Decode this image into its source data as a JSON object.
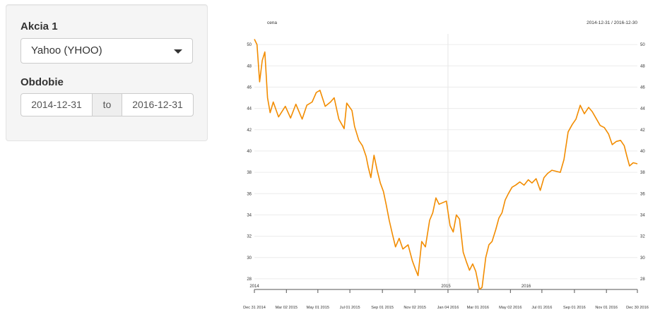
{
  "sidebar": {
    "stock_label": "Akcia 1",
    "stock_value": "Yahoo (YHOO)",
    "period_label": "Obdobie",
    "date_from": "2014-12-31",
    "date_sep": "to",
    "date_to": "2016-12-31"
  },
  "chart_data": {
    "type": "line",
    "series": [
      {
        "name": "cena",
        "color": "#f28c00",
        "points": [
          [
            "2014-12-31",
            50.5
          ],
          [
            "2015-01-05",
            50.0
          ],
          [
            "2015-01-10",
            46.5
          ],
          [
            "2015-01-15",
            48.5
          ],
          [
            "2015-01-20",
            49.3
          ],
          [
            "2015-01-25",
            45.0
          ],
          [
            "2015-01-30",
            43.6
          ],
          [
            "2015-02-05",
            44.6
          ],
          [
            "2015-02-15",
            43.2
          ],
          [
            "2015-02-28",
            44.2
          ],
          [
            "2015-03-10",
            43.1
          ],
          [
            "2015-03-20",
            44.4
          ],
          [
            "2015-04-01",
            43.0
          ],
          [
            "2015-04-10",
            44.3
          ],
          [
            "2015-04-20",
            44.6
          ],
          [
            "2015-04-28",
            45.5
          ],
          [
            "2015-05-05",
            45.7
          ],
          [
            "2015-05-15",
            44.2
          ],
          [
            "2015-05-25",
            44.6
          ],
          [
            "2015-06-01",
            45.0
          ],
          [
            "2015-06-10",
            43.0
          ],
          [
            "2015-06-20",
            42.1
          ],
          [
            "2015-06-25",
            44.5
          ],
          [
            "2015-07-05",
            43.8
          ],
          [
            "2015-07-10",
            42.3
          ],
          [
            "2015-07-18",
            41.0
          ],
          [
            "2015-07-25",
            40.5
          ],
          [
            "2015-08-01",
            39.5
          ],
          [
            "2015-08-05",
            38.5
          ],
          [
            "2015-08-10",
            37.5
          ],
          [
            "2015-08-16",
            39.6
          ],
          [
            "2015-08-22",
            38.2
          ],
          [
            "2015-08-28",
            37.0
          ],
          [
            "2015-09-03",
            36.2
          ],
          [
            "2015-09-08",
            35.0
          ],
          [
            "2015-09-14",
            33.5
          ],
          [
            "2015-09-20",
            32.2
          ],
          [
            "2015-09-26",
            31.0
          ],
          [
            "2015-10-03",
            31.8
          ],
          [
            "2015-10-10",
            30.8
          ],
          [
            "2015-10-20",
            31.2
          ],
          [
            "2015-10-28",
            29.7
          ],
          [
            "2015-11-03",
            28.9
          ],
          [
            "2015-11-08",
            28.3
          ],
          [
            "2015-11-15",
            31.5
          ],
          [
            "2015-11-22",
            31.0
          ],
          [
            "2015-11-30",
            33.5
          ],
          [
            "2015-12-06",
            34.2
          ],
          [
            "2015-12-12",
            35.6
          ],
          [
            "2015-12-18",
            35.0
          ],
          [
            "2016-01-01",
            35.3
          ],
          [
            "2016-01-08",
            33.0
          ],
          [
            "2016-01-14",
            32.4
          ],
          [
            "2016-01-20",
            34.0
          ],
          [
            "2016-01-26",
            33.6
          ],
          [
            "2016-02-02",
            30.5
          ],
          [
            "2016-02-08",
            29.6
          ],
          [
            "2016-02-14",
            28.8
          ],
          [
            "2016-02-20",
            29.4
          ],
          [
            "2016-02-26",
            28.7
          ],
          [
            "2016-03-04",
            27.0
          ],
          [
            "2016-03-09",
            27.2
          ],
          [
            "2016-03-16",
            30.0
          ],
          [
            "2016-03-22",
            31.2
          ],
          [
            "2016-03-28",
            31.5
          ],
          [
            "2016-04-04",
            32.6
          ],
          [
            "2016-04-10",
            33.7
          ],
          [
            "2016-04-16",
            34.2
          ],
          [
            "2016-04-22",
            35.4
          ],
          [
            "2016-04-28",
            36.0
          ],
          [
            "2016-05-05",
            36.6
          ],
          [
            "2016-05-12",
            36.8
          ],
          [
            "2016-05-20",
            37.1
          ],
          [
            "2016-05-28",
            36.8
          ],
          [
            "2016-06-05",
            37.3
          ],
          [
            "2016-06-12",
            37.0
          ],
          [
            "2016-06-20",
            37.4
          ],
          [
            "2016-06-28",
            36.3
          ],
          [
            "2016-07-05",
            37.5
          ],
          [
            "2016-07-12",
            37.9
          ],
          [
            "2016-07-20",
            38.2
          ],
          [
            "2016-07-28",
            38.1
          ],
          [
            "2016-08-05",
            38.0
          ],
          [
            "2016-08-12",
            39.2
          ],
          [
            "2016-08-20",
            41.8
          ],
          [
            "2016-08-28",
            42.5
          ],
          [
            "2016-09-04",
            43.0
          ],
          [
            "2016-09-12",
            44.3
          ],
          [
            "2016-09-20",
            43.5
          ],
          [
            "2016-09-28",
            44.1
          ],
          [
            "2016-10-05",
            43.7
          ],
          [
            "2016-10-12",
            43.1
          ],
          [
            "2016-10-20",
            42.4
          ],
          [
            "2016-10-28",
            42.2
          ],
          [
            "2016-11-05",
            41.6
          ],
          [
            "2016-11-12",
            40.6
          ],
          [
            "2016-11-20",
            40.9
          ],
          [
            "2016-11-28",
            41.0
          ],
          [
            "2016-12-05",
            40.5
          ],
          [
            "2016-12-10",
            39.5
          ],
          [
            "2016-12-15",
            38.6
          ],
          [
            "2016-12-22",
            38.9
          ],
          [
            "2016-12-30",
            38.8
          ]
        ]
      }
    ],
    "title_left": "cena",
    "title_right": "2014-12-31 / 2016-12-30",
    "ylim": [
      27,
      51
    ],
    "yticks": [
      28,
      30,
      32,
      34,
      36,
      38,
      40,
      42,
      44,
      46,
      48,
      50
    ],
    "xlim": [
      "2014-12-31",
      "2016-12-30"
    ],
    "year_ticks": [
      {
        "date": "2014-12-31",
        "label": "2014"
      },
      {
        "date": "2015-12-31",
        "label": "2015"
      },
      {
        "date": "2016-06-01",
        "label": "2016"
      }
    ],
    "major_tick": "2016-01-04",
    "month_ticks": [
      {
        "date": "2014-12-31",
        "label": "Dec 31 2014"
      },
      {
        "date": "2015-03-02",
        "label": "Mar 02 2015"
      },
      {
        "date": "2015-05-01",
        "label": "May 01 2015"
      },
      {
        "date": "2015-07-01",
        "label": "Jul 01 2015"
      },
      {
        "date": "2015-09-01",
        "label": "Sep 01 2015"
      },
      {
        "date": "2015-11-02",
        "label": "Nov 02 2015"
      },
      {
        "date": "2016-01-04",
        "label": "Jan 04 2016"
      },
      {
        "date": "2016-03-01",
        "label": "Mar 01 2016"
      },
      {
        "date": "2016-05-02",
        "label": "May 02 2016"
      },
      {
        "date": "2016-07-01",
        "label": "Jul 01 2016"
      },
      {
        "date": "2016-09-01",
        "label": "Sep 01 2016"
      },
      {
        "date": "2016-11-01",
        "label": "Nov 01 2016"
      },
      {
        "date": "2016-12-30",
        "label": "Dec 30 2016"
      }
    ],
    "grid": true
  }
}
